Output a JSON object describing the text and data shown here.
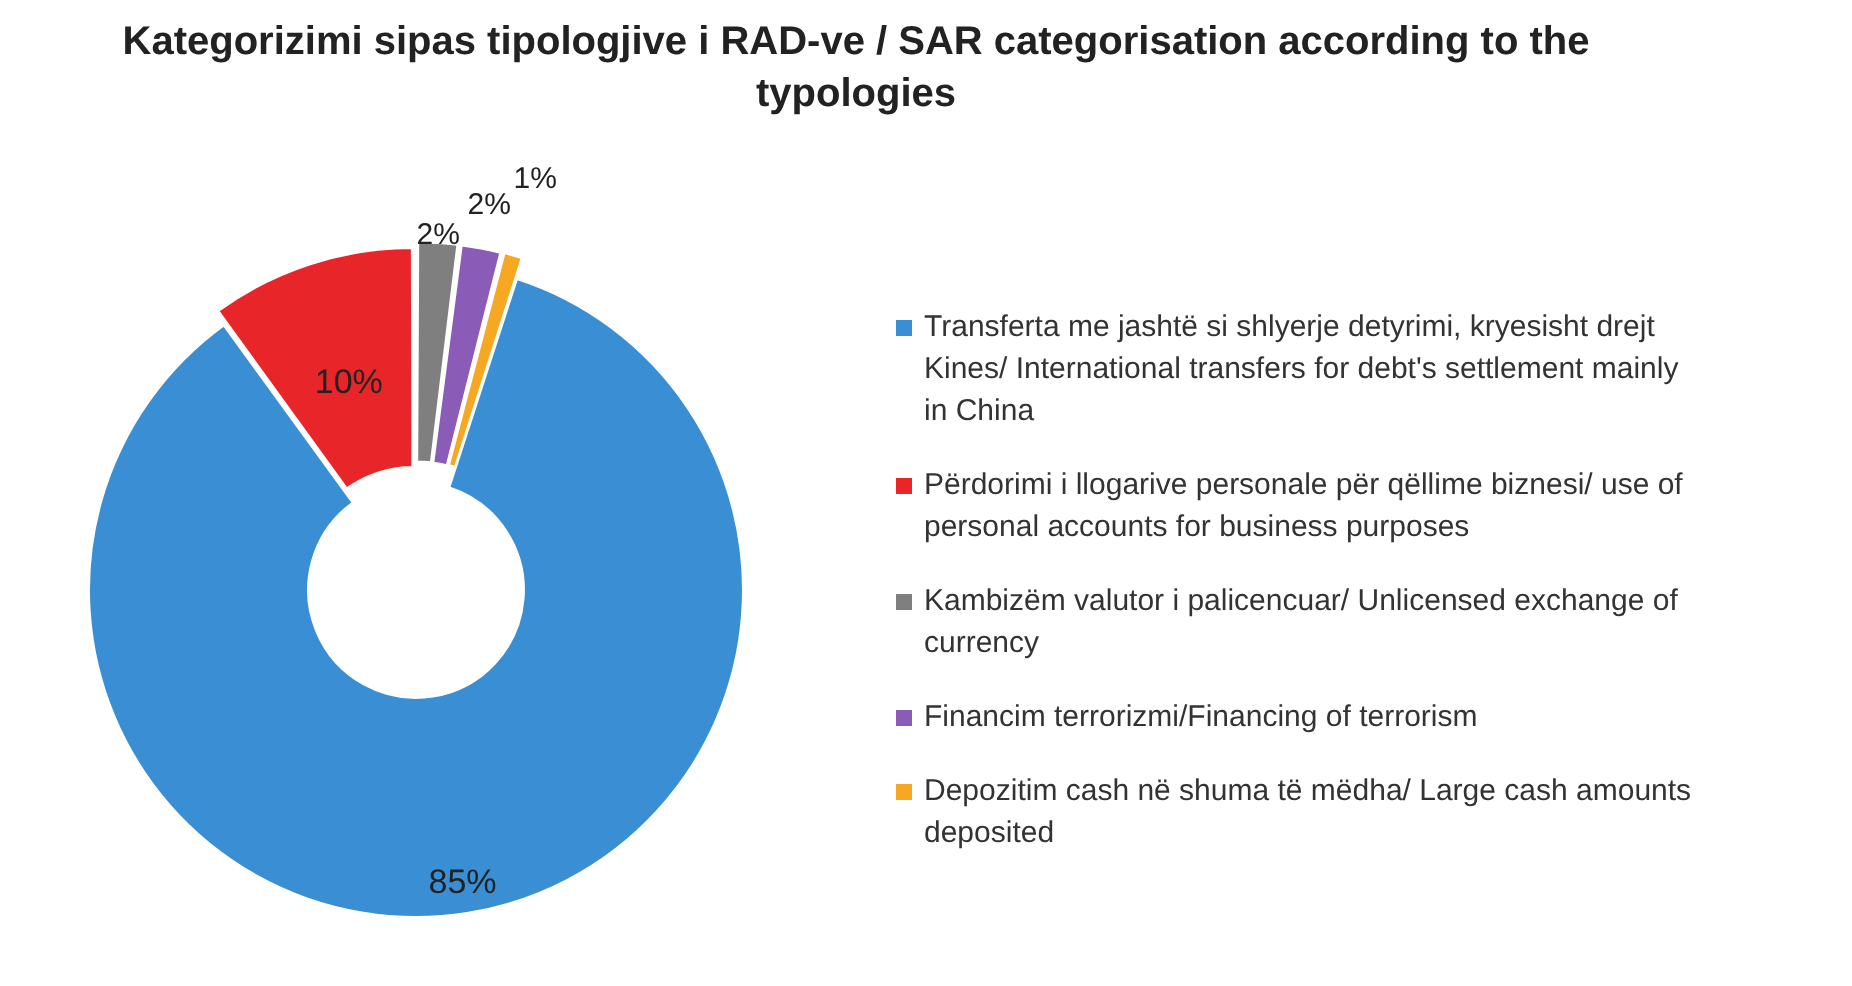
{
  "chart_data": {
    "type": "donut",
    "title": "Kategorizimi sipas tipologjive i RAD-ve / SAR categorisation according to the typologies",
    "categories": [
      "Transferta me jashtë si shlyerje detyrimi, kryesisht drejt Kines/ International transfers for debt's settlement mainly in China",
      "Përdorimi i llogarive personale për qëllime biznesi/ use of personal accounts for business purposes",
      "Kambizëm valutor i palicencuar/ Unlicensed exchange of currency",
      "Financim terrorizmi/Financing of terrorism",
      "Depozitim cash në shuma të mëdha/ Large cash amounts deposited"
    ],
    "values": [
      85,
      10,
      2,
      2,
      1
    ],
    "colors": [
      "#3a8fd4",
      "#e8262a",
      "#7f7f7f",
      "#8a5cb8",
      "#f7a823"
    ],
    "value_labels": [
      "85%",
      "10%",
      "2%",
      "2%",
      "1%"
    ],
    "legend": "right"
  }
}
